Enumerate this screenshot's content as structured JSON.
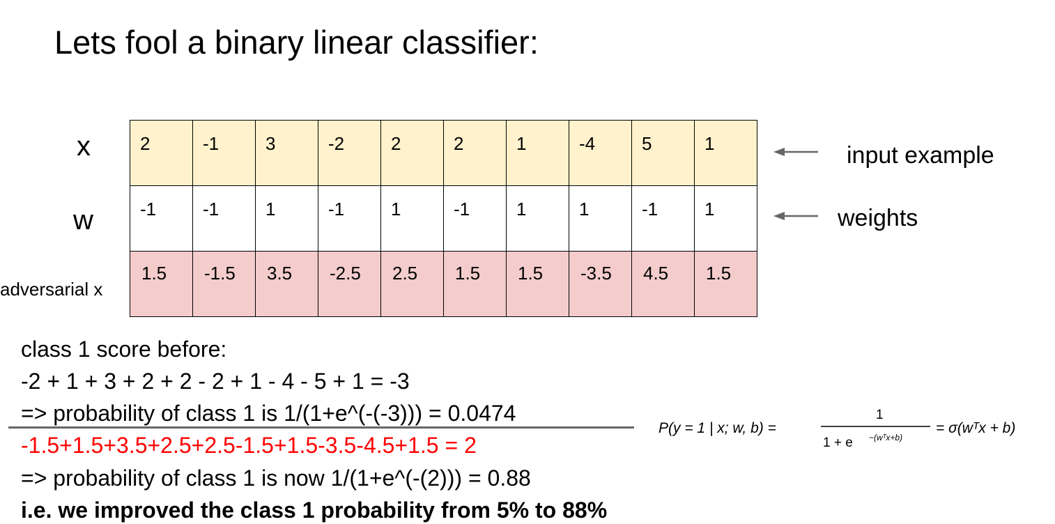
{
  "title": "Lets fool a binary linear classifier:",
  "row_labels": {
    "x": "x",
    "w": "w",
    "adversarial": "adversarial x"
  },
  "table": {
    "x": [
      "2",
      "-1",
      "3",
      "-2",
      "2",
      "2",
      "1",
      "-4",
      "5",
      "1"
    ],
    "w": [
      "-1",
      "-1",
      "1",
      "-1",
      "1",
      "-1",
      "1",
      "1",
      "-1",
      "1"
    ],
    "adversarial_x": [
      "1.5",
      "-1.5",
      "3.5",
      "-2.5",
      "2.5",
      "1.5",
      "1.5",
      "-3.5",
      "4.5",
      "1.5"
    ],
    "colors": {
      "x_row": "#fff2cc",
      "w_row": "#ffffff",
      "adversarial_row": "#f4cccc"
    }
  },
  "annotations": {
    "input": "input example",
    "weights": "weights",
    "arrow_icon": "left-arrow-icon",
    "arrow_color": "#666666"
  },
  "text": {
    "line1": "class 1 score before:",
    "line2": "-2 + 1 + 3 + 2 + 2 - 2 + 1 - 4 - 5 + 1 = -3",
    "line3": "=> probability of class 1 is 1/(1+e^(-(-3))) = 0.0474",
    "line4": "-1.5+1.5+3.5+2.5+2.5-1.5+1.5-3.5-4.5+1.5 = 2",
    "line5": "=> probability of class 1 is now 1/(1+e^(-(2))) = 0.88",
    "line6": "i.e. we improved the class 1 probability from 5% to 88%",
    "highlight_color": "#ff0000"
  },
  "formula": {
    "lhs": "P(y = 1 | x; w, b) =",
    "numerator": "1",
    "denominator": "1 + e",
    "denominator_exponent": "−(wᵀx+b)",
    "rhs": "= σ(wᵀx + b)"
  }
}
